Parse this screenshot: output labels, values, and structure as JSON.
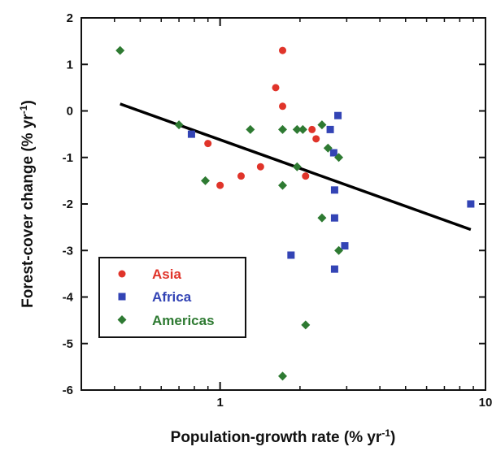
{
  "chart_data": {
    "type": "scatter",
    "x_scale": "log",
    "xlim": [
      0.3,
      10
    ],
    "ylim": [
      -6,
      2
    ],
    "x_ticks": [
      {
        "value": 1,
        "label": "1"
      },
      {
        "value": 10,
        "label": "10"
      }
    ],
    "y_ticks": [
      {
        "value": 2,
        "label": "2"
      },
      {
        "value": 1,
        "label": "1"
      },
      {
        "value": 0,
        "label": "0"
      },
      {
        "value": -1,
        "label": "-1"
      },
      {
        "value": -2,
        "label": "-2"
      },
      {
        "value": -3,
        "label": "-3"
      },
      {
        "value": -4,
        "label": "-4"
      },
      {
        "value": -5,
        "label": "-5"
      },
      {
        "value": -6,
        "label": "-6"
      }
    ],
    "xlabel": {
      "main": "Population-growth rate (% yr",
      "sup": "-1",
      "end": ")"
    },
    "ylabel": {
      "main": "Forest-cover change (% yr",
      "sup": "-1",
      "end": ")"
    },
    "grid": false,
    "legend_position": "bottom-left",
    "series": [
      {
        "name": "Asia",
        "marker": "circle",
        "color": "#e0342a",
        "points": [
          [
            1.72,
            1.3
          ],
          [
            1.62,
            0.5
          ],
          [
            1.72,
            0.1
          ],
          [
            0.9,
            -0.7
          ],
          [
            1.0,
            -1.6
          ],
          [
            1.2,
            -1.4
          ],
          [
            1.42,
            -1.2
          ],
          [
            2.1,
            -1.4
          ],
          [
            2.22,
            -0.4
          ],
          [
            2.3,
            -0.6
          ]
        ]
      },
      {
        "name": "Africa",
        "marker": "square",
        "color": "#3344b5",
        "points": [
          [
            0.78,
            -0.5
          ],
          [
            2.6,
            -0.4
          ],
          [
            2.68,
            -0.9
          ],
          [
            2.78,
            -0.1
          ],
          [
            2.7,
            -1.7
          ],
          [
            2.7,
            -2.3
          ],
          [
            1.85,
            -3.1
          ],
          [
            2.7,
            -3.4
          ],
          [
            2.95,
            -2.9
          ],
          [
            8.8,
            -2.0
          ]
        ]
      },
      {
        "name": "Americas",
        "marker": "diamond",
        "color": "#2e7a32",
        "points": [
          [
            0.42,
            1.3
          ],
          [
            0.7,
            -0.3
          ],
          [
            0.88,
            -1.5
          ],
          [
            1.3,
            -0.4
          ],
          [
            1.72,
            -0.4
          ],
          [
            1.95,
            -0.4
          ],
          [
            2.05,
            -0.4
          ],
          [
            2.42,
            -0.3
          ],
          [
            2.55,
            -0.8
          ],
          [
            2.8,
            -1.0
          ],
          [
            1.72,
            -1.6
          ],
          [
            1.95,
            -1.2
          ],
          [
            2.42,
            -2.3
          ],
          [
            2.8,
            -3.0
          ],
          [
            2.1,
            -4.6
          ],
          [
            1.72,
            -5.7
          ]
        ]
      }
    ],
    "trendline": {
      "from": [
        0.42,
        0.15
      ],
      "to": [
        8.8,
        -2.55
      ],
      "color": "#000000"
    }
  }
}
